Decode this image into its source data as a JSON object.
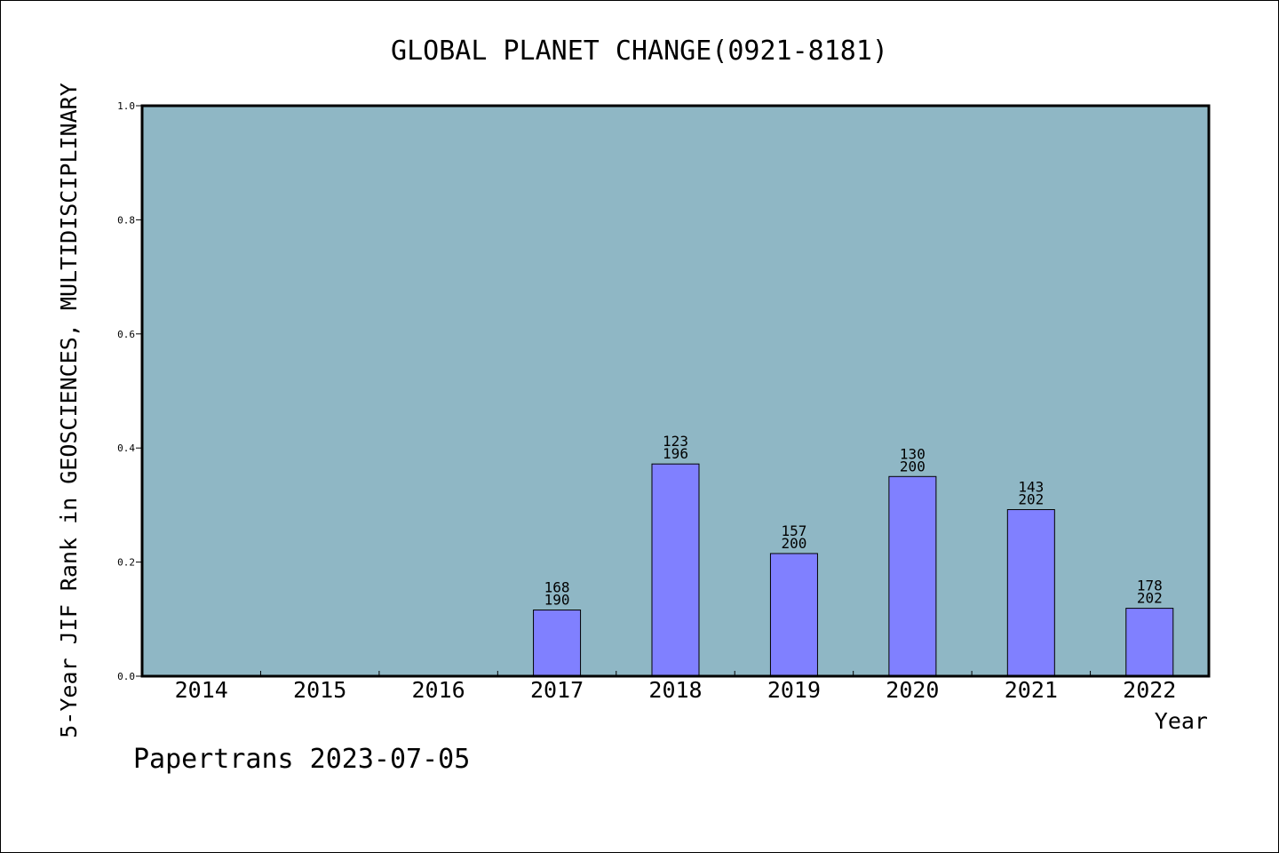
{
  "chart_data": {
    "type": "bar",
    "title": "GLOBAL PLANET CHANGE(0921-8181)",
    "ylabel": "5-Year JIF Rank in GEOSCIENCES, MULTIDISCIPLINARY",
    "xlabel": "Year",
    "categories": [
      "2014",
      "2015",
      "2016",
      "2017",
      "2018",
      "2019",
      "2020",
      "2021",
      "2022"
    ],
    "values": [
      null,
      null,
      null,
      0.116,
      0.372,
      0.215,
      0.35,
      0.292,
      0.119
    ],
    "bar_labels": [
      null,
      null,
      null,
      [
        "168",
        "190"
      ],
      [
        "123",
        "196"
      ],
      [
        "157",
        "200"
      ],
      [
        "130",
        "200"
      ],
      [
        "143",
        "202"
      ],
      [
        "178",
        "202"
      ]
    ],
    "ylim": [
      0,
      1.0
    ],
    "yticks": [
      "0.0",
      "0.2",
      "0.4",
      "0.6",
      "0.8",
      "1.0"
    ],
    "grid": false,
    "colors": {
      "plot_bg": "#8fb7c5",
      "bar": "#8080ff",
      "axis": "#000000"
    }
  },
  "footer": "Papertrans 2023-07-05"
}
